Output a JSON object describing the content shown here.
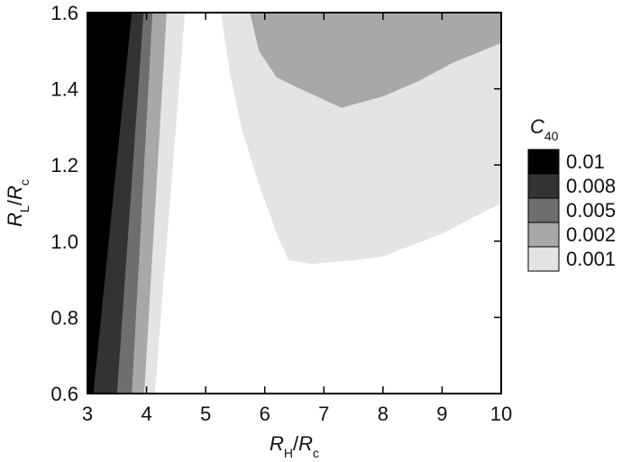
{
  "chart_data": {
    "type": "contour",
    "xlabel": [
      {
        "text": "R",
        "italic": true
      },
      {
        "text": "H",
        "sub": true
      },
      {
        "text": "/"
      },
      {
        "text": "R",
        "italic": true
      },
      {
        "text": "c",
        "sub": true
      }
    ],
    "ylabel": [
      {
        "text": "R",
        "italic": true
      },
      {
        "text": "L",
        "sub": true
      },
      {
        "text": "/"
      },
      {
        "text": "R",
        "italic": true
      },
      {
        "text": "c",
        "sub": true
      }
    ],
    "legend_title": [
      {
        "text": "C",
        "italic": true
      },
      {
        "text": "40",
        "sub": true
      }
    ],
    "xlim": [
      3,
      10
    ],
    "xticks": [
      3,
      4,
      5,
      6,
      7,
      8,
      9,
      10
    ],
    "ylim": [
      0.6,
      1.6
    ],
    "yticks": [
      0.6,
      0.8,
      {
        "value": 1,
        "label": "1.0"
      },
      1.2,
      1.4,
      1.6
    ],
    "levels": [
      {
        "value": 0.01,
        "color": "#000000"
      },
      {
        "value": 0.008,
        "color": "#333333"
      },
      {
        "value": 0.005,
        "color": "#6e6e6e"
      },
      {
        "value": 0.002,
        "color": "#a8a8a8"
      },
      {
        "value": 0.001,
        "color": "#e4e4e4"
      }
    ],
    "regions": [
      {
        "value": 0.001,
        "x": [
          3,
          4.14,
          4.65,
          3
        ],
        "y": [
          0.6,
          0.6,
          1.6,
          1.6
        ]
      },
      {
        "value": 0.001,
        "x": [
          5.26,
          5.4,
          5.6,
          5.9,
          6.2,
          6.4,
          6.8,
          7.5,
          8,
          8.5,
          9,
          9.5,
          10,
          10
        ],
        "y": [
          1.6,
          1.45,
          1.3,
          1.15,
          1.02,
          0.95,
          0.94,
          0.95,
          0.96,
          0.99,
          1.02,
          1.06,
          1.1,
          1.6
        ]
      },
      {
        "value": 0.002,
        "x": [
          3,
          3.96,
          4.34,
          3
        ],
        "y": [
          0.6,
          0.6,
          1.6,
          1.6
        ]
      },
      {
        "value": 0.002,
        "x": [
          5.75,
          5.9,
          6.2,
          6.6,
          7.3,
          8,
          8.6,
          9.2,
          10,
          10
        ],
        "y": [
          1.6,
          1.5,
          1.43,
          1.4,
          1.35,
          1.38,
          1.42,
          1.47,
          1.52,
          1.6
        ]
      },
      {
        "value": 0.005,
        "x": [
          3,
          3.75,
          4.1,
          3
        ],
        "y": [
          0.6,
          0.6,
          1.6,
          1.6
        ]
      },
      {
        "value": 0.008,
        "x": [
          3,
          3.5,
          3.95,
          3
        ],
        "y": [
          0.6,
          0.6,
          1.6,
          1.6
        ]
      },
      {
        "value": 0.01,
        "x": [
          3,
          3.1,
          3.75,
          3
        ],
        "y": [
          0.6,
          0.6,
          1.6,
          1.6
        ]
      }
    ]
  }
}
